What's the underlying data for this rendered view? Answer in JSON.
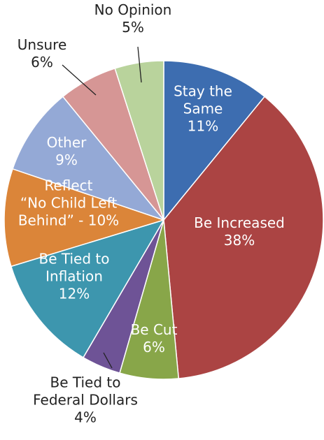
{
  "chart_data": {
    "type": "pie",
    "slices": [
      {
        "key": "stay",
        "lines": [
          "Stay the",
          "Same",
          "11%"
        ],
        "value": 11,
        "color": "#3d6db0",
        "label_color": "#ffffff"
      },
      {
        "key": "increased",
        "lines": [
          "Be Increased",
          "38%"
        ],
        "value": 38,
        "color": "#ab4443",
        "label_color": "#ffffff"
      },
      {
        "key": "cut",
        "lines": [
          "Be Cut",
          "6%"
        ],
        "value": 6,
        "color": "#88a649",
        "label_color": "#ffffff"
      },
      {
        "key": "federal",
        "lines": [
          "Be Tied to",
          "Federal Dollars",
          "4%"
        ],
        "value": 4,
        "color": "#6e5396",
        "label_color": "#222222"
      },
      {
        "key": "inflation",
        "lines": [
          "Be Tied to",
          "Inflation",
          "12%"
        ],
        "value": 12,
        "color": "#3d96ae",
        "label_color": "#ffffff"
      },
      {
        "key": "nclb",
        "lines": [
          "Reflect",
          "“No Child Left",
          "Behind” - 10%"
        ],
        "value": 10,
        "color": "#db8539",
        "label_color": "#ffffff"
      },
      {
        "key": "other",
        "lines": [
          "Other",
          "9%"
        ],
        "value": 9,
        "color": "#94a9d6",
        "label_color": "#ffffff"
      },
      {
        "key": "unsure",
        "lines": [
          "Unsure",
          "6%"
        ],
        "value": 6,
        "color": "#d69695",
        "label_color": "#222222"
      },
      {
        "key": "noopinion",
        "lines": [
          "No Opinion",
          "5%"
        ],
        "value": 5,
        "color": "#b9d39c",
        "label_color": "#222222"
      }
    ]
  }
}
